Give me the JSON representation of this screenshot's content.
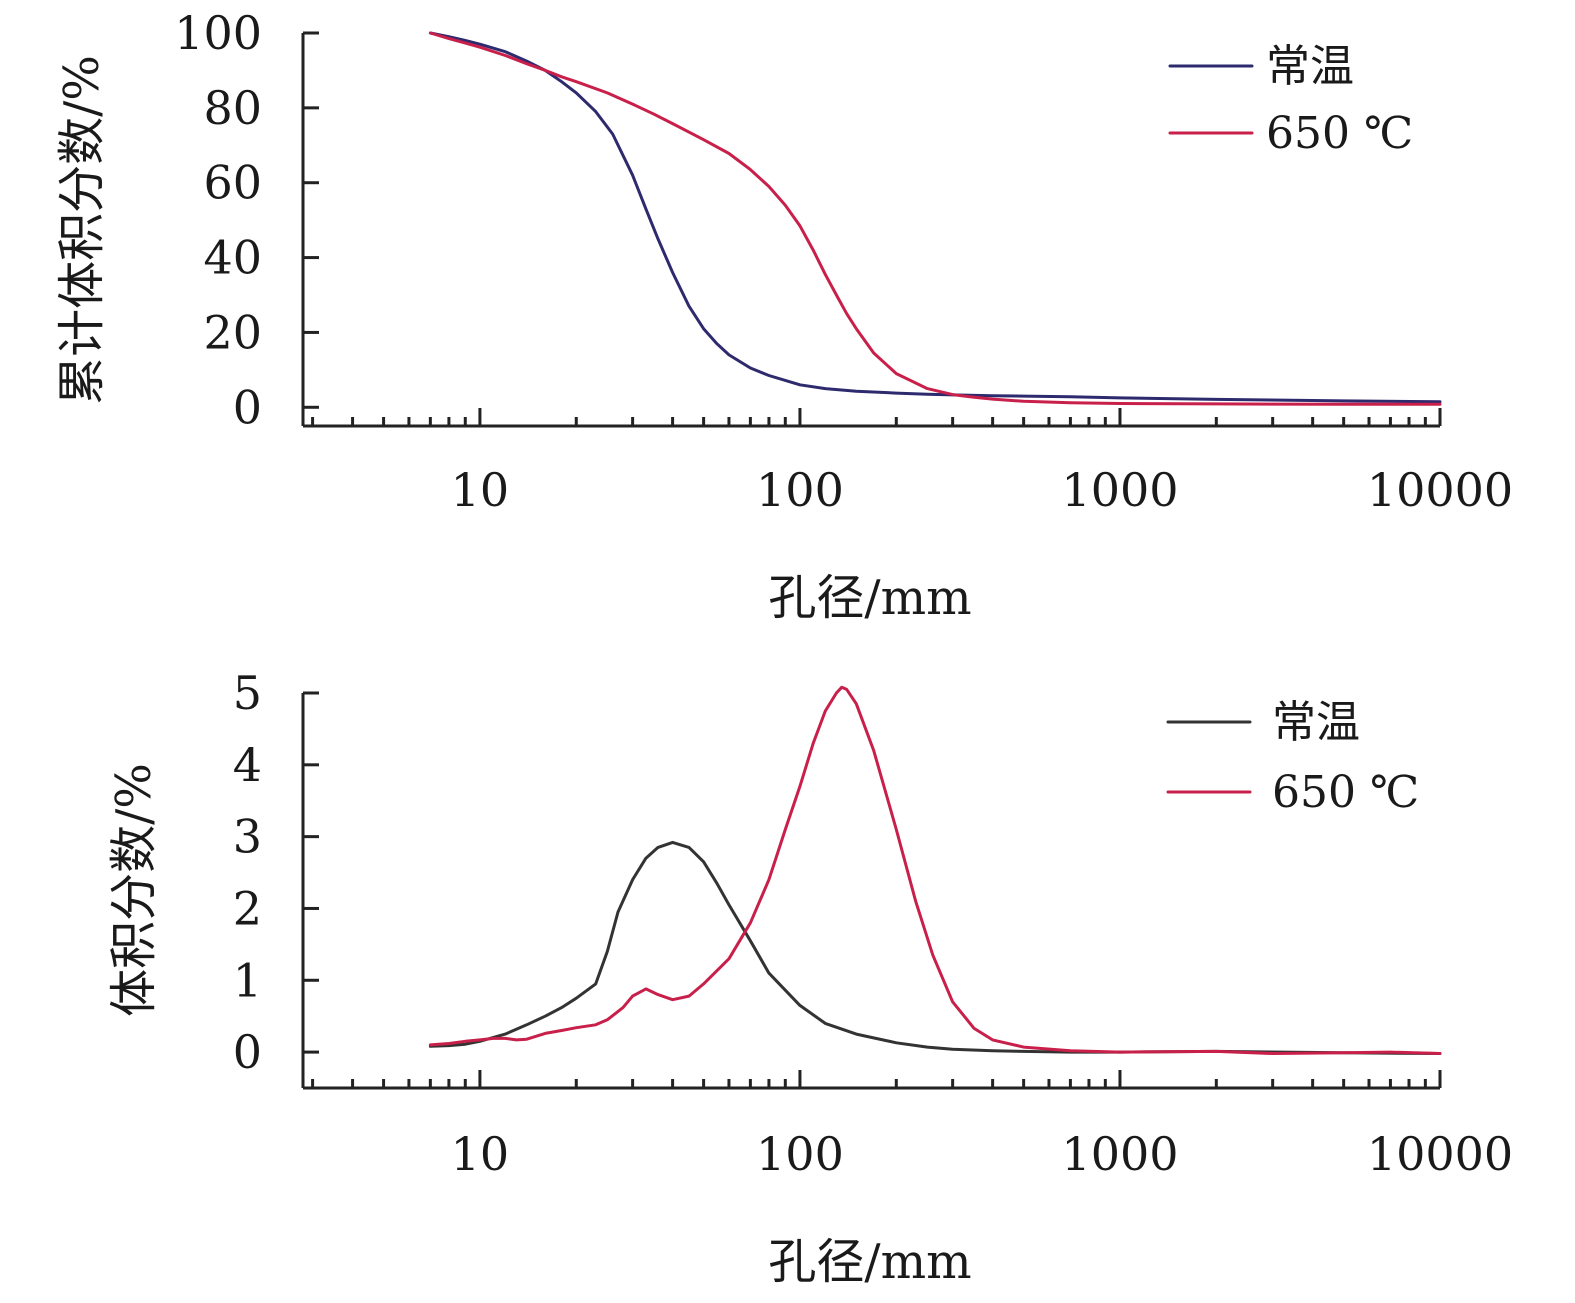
{
  "colors": {
    "ambient_top": "#2e2a6e",
    "ambient_bottom": "#333333",
    "heated": "#c8204a",
    "axis": "#222222"
  },
  "chart_data": [
    {
      "type": "line",
      "title": "",
      "xlabel": "孔径/mm",
      "ylabel": "累计体积分数/%",
      "x_scale": "log",
      "xlim": [
        2.8,
        10000
      ],
      "ylim": [
        -5,
        100
      ],
      "x_ticks": [
        10,
        100,
        1000,
        10000
      ],
      "x_tick_labels": [
        "10",
        "100",
        "1000",
        "10000"
      ],
      "y_ticks": [
        0,
        20,
        40,
        60,
        80,
        100
      ],
      "y_tick_labels": [
        "0",
        "20",
        "40",
        "60",
        "80",
        "100"
      ],
      "grid": false,
      "legend_position": "top-right",
      "series": [
        {
          "name": "常温",
          "color_key": "ambient_top",
          "x": [
            7,
            8,
            9,
            10,
            12,
            14,
            16,
            18,
            20,
            23,
            26,
            30,
            33,
            36,
            40,
            45,
            50,
            55,
            60,
            70,
            80,
            100,
            120,
            150,
            200,
            250,
            300,
            400,
            500,
            700,
            1000,
            2000,
            5000,
            10000
          ],
          "y": [
            100,
            99,
            98,
            97,
            95,
            92.5,
            90,
            87,
            84,
            79,
            73,
            62,
            53,
            45,
            36,
            27,
            21,
            17,
            14,
            10.5,
            8.5,
            6,
            5,
            4.3,
            3.8,
            3.5,
            3.3,
            3.1,
            3,
            2.8,
            2.5,
            2.1,
            1.7,
            1.5
          ]
        },
        {
          "name": "650 ℃",
          "color_key": "heated",
          "x": [
            7,
            8,
            9,
            10,
            12,
            14,
            16,
            18,
            20,
            25,
            30,
            35,
            40,
            50,
            60,
            70,
            80,
            90,
            100,
            110,
            120,
            130,
            140,
            150,
            170,
            200,
            250,
            300,
            350,
            400,
            500,
            700,
            1000,
            2000,
            5000,
            10000
          ],
          "y": [
            100,
            98.5,
            97.3,
            96.2,
            94,
            91.8,
            90,
            88.3,
            87,
            84,
            81,
            78.3,
            75.8,
            71.5,
            67.8,
            63.5,
            59,
            54,
            48.5,
            42,
            35.5,
            30,
            25,
            21,
            14.5,
            9,
            5,
            3.4,
            2.7,
            2.2,
            1.6,
            1.2,
            1,
            0.9,
            0.8,
            0.8
          ]
        }
      ]
    },
    {
      "type": "line",
      "title": "",
      "xlabel": "孔径/mm",
      "ylabel": "体积分数/%",
      "x_scale": "log",
      "xlim": [
        2.8,
        10000
      ],
      "ylim": [
        -0.5,
        5
      ],
      "x_ticks": [
        10,
        100,
        1000,
        10000
      ],
      "x_tick_labels": [
        "10",
        "100",
        "1000",
        "10000"
      ],
      "y_ticks": [
        0,
        1,
        2,
        3,
        4,
        5
      ],
      "y_tick_labels": [
        "0",
        "1",
        "2",
        "3",
        "4",
        "5"
      ],
      "grid": false,
      "legend_position": "top-right",
      "series": [
        {
          "name": "常温",
          "color_key": "ambient_bottom",
          "x": [
            7,
            8,
            9,
            10,
            12,
            14,
            16,
            18,
            20,
            23,
            25,
            27,
            30,
            33,
            36,
            40,
            45,
            50,
            55,
            60,
            70,
            80,
            100,
            120,
            150,
            200,
            250,
            300,
            400,
            500,
            700,
            1000,
            2000,
            5000,
            10000
          ],
          "y": [
            0.08,
            0.09,
            0.11,
            0.15,
            0.25,
            0.38,
            0.5,
            0.62,
            0.75,
            0.95,
            1.4,
            1.95,
            2.4,
            2.7,
            2.85,
            2.92,
            2.85,
            2.65,
            2.35,
            2.05,
            1.55,
            1.1,
            0.65,
            0.4,
            0.25,
            0.13,
            0.07,
            0.04,
            0.02,
            0.01,
            0.0,
            0.0,
            0.01,
            -0.01,
            -0.02
          ]
        },
        {
          "name": "650 ℃",
          "color_key": "heated",
          "x": [
            7,
            8,
            9,
            10,
            11,
            12,
            13,
            14,
            16,
            18,
            20,
            23,
            25,
            28,
            30,
            33,
            36,
            40,
            45,
            50,
            60,
            70,
            80,
            90,
            100,
            110,
            120,
            130,
            135,
            140,
            150,
            170,
            200,
            230,
            260,
            300,
            350,
            400,
            500,
            700,
            1000,
            2000,
            3000,
            5000,
            7000,
            10000
          ],
          "y": [
            0.1,
            0.12,
            0.15,
            0.17,
            0.19,
            0.19,
            0.17,
            0.18,
            0.26,
            0.3,
            0.34,
            0.38,
            0.45,
            0.62,
            0.78,
            0.88,
            0.8,
            0.73,
            0.78,
            0.95,
            1.3,
            1.8,
            2.4,
            3.1,
            3.7,
            4.3,
            4.75,
            5.0,
            5.08,
            5.05,
            4.85,
            4.2,
            3.1,
            2.1,
            1.35,
            0.7,
            0.33,
            0.17,
            0.07,
            0.02,
            0.0,
            0.01,
            -0.02,
            -0.01,
            0.0,
            -0.02
          ]
        }
      ]
    }
  ]
}
